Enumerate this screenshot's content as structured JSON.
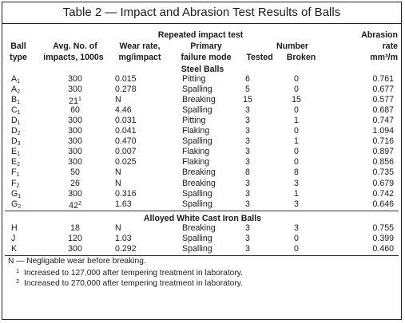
{
  "title": "Table 2 — Impact and Abrasion Test Results of Balls",
  "headers": {
    "repeated_impact_test": "Repeated impact test",
    "number": "Number",
    "abrasion": "Abrasion",
    "ball": "Ball",
    "type": "type",
    "avg_no_of": "Avg. No. of",
    "impacts_1000s": "impacts, 1000s",
    "wear_rate": "Wear rate,",
    "mg_impact": "mg/impact",
    "primary": "Primary",
    "failure_mode": "failure mode",
    "tested": "Tested",
    "broken": "Broken",
    "rate": "rate",
    "rate_unit": "mm³/m"
  },
  "sections": [
    {
      "label": "Steel Balls",
      "rows": [
        {
          "ball": "A",
          "sub": "1",
          "avg": "300",
          "avg_sup": "",
          "wear": "0.015",
          "mode": "Pitting",
          "tested": "6",
          "broken": "0",
          "abrasion": "0.761"
        },
        {
          "ball": "A",
          "sub": "2",
          "avg": "300",
          "avg_sup": "",
          "wear": "0.278",
          "mode": "Spalling",
          "tested": "5",
          "broken": "0",
          "abrasion": "0.677"
        },
        {
          "ball": "B",
          "sub": "1",
          "avg": "21",
          "avg_sup": "1",
          "wear": "N",
          "mode": "Breaking",
          "tested": "15",
          "broken": "15",
          "abrasion": "0.577"
        },
        {
          "ball": "C",
          "sub": "1",
          "avg": "60",
          "avg_sup": "",
          "wear": "4.46",
          "mode": "Spalling",
          "tested": "3",
          "broken": "0",
          "abrasion": "0.687"
        },
        {
          "ball": "D",
          "sub": "1",
          "avg": "300",
          "avg_sup": "",
          "wear": "0.031",
          "mode": "Pitting",
          "tested": "3",
          "broken": "1",
          "abrasion": "0.747"
        },
        {
          "ball": "D",
          "sub": "2",
          "avg": "300",
          "avg_sup": "",
          "wear": "0.041",
          "mode": "Flaking",
          "tested": "3",
          "broken": "0",
          "abrasion": "1.094"
        },
        {
          "ball": "D",
          "sub": "3",
          "avg": "300",
          "avg_sup": "",
          "wear": "0.470",
          "mode": "Spalling",
          "tested": "3",
          "broken": "1",
          "abrasion": "0.716"
        },
        {
          "ball": "E",
          "sub": "1",
          "avg": "300",
          "avg_sup": "",
          "wear": "0.007",
          "mode": "Flaking",
          "tested": "3",
          "broken": "0",
          "abrasion": "0.897"
        },
        {
          "ball": "E",
          "sub": "2",
          "avg": "300",
          "avg_sup": "",
          "wear": "0.025",
          "mode": "Flaking",
          "tested": "3",
          "broken": "0",
          "abrasion": "0.856"
        },
        {
          "ball": "F",
          "sub": "1",
          "avg": "50",
          "avg_sup": "",
          "wear": "N",
          "mode": "Breaking",
          "tested": "8",
          "broken": "8",
          "abrasion": "0.735"
        },
        {
          "ball": "F",
          "sub": "2",
          "avg": "26",
          "avg_sup": "",
          "wear": "N",
          "mode": "Breaking",
          "tested": "3",
          "broken": "3",
          "abrasion": "0.679"
        },
        {
          "ball": "G",
          "sub": "1",
          "avg": "300",
          "avg_sup": "",
          "wear": "0.316",
          "mode": "Spalling",
          "tested": "3",
          "broken": "1",
          "abrasion": "0.742"
        },
        {
          "ball": "G",
          "sub": "2",
          "avg": "42",
          "avg_sup": "2",
          "wear": "1.63",
          "mode": "Spalling",
          "tested": "3",
          "broken": "3",
          "abrasion": "0.646"
        }
      ]
    },
    {
      "label": "Alloyed White Cast Iron Balls",
      "rows": [
        {
          "ball": "H",
          "sub": "",
          "avg": "18",
          "avg_sup": "",
          "wear": "N",
          "mode": "Breaking",
          "tested": "3",
          "broken": "3",
          "abrasion": "0.755"
        },
        {
          "ball": "J",
          "sub": "",
          "avg": "120",
          "avg_sup": "",
          "wear": "1.03",
          "mode": "Spalling",
          "tested": "3",
          "broken": "0",
          "abrasion": "0.399"
        },
        {
          "ball": "K",
          "sub": "",
          "avg": "300",
          "avg_sup": "",
          "wear": "0.292",
          "mode": "Spalling",
          "tested": "3",
          "broken": "0",
          "abrasion": "0.460"
        }
      ]
    }
  ],
  "notes": [
    {
      "mark": "",
      "text": "N — Negligable wear before breaking."
    },
    {
      "mark": "1",
      "text": "Increased to 127,000 after tempering treatment in laboratory."
    },
    {
      "mark": "2",
      "text": "Increased to 270,000 after tempering treatment in laboratory."
    }
  ]
}
